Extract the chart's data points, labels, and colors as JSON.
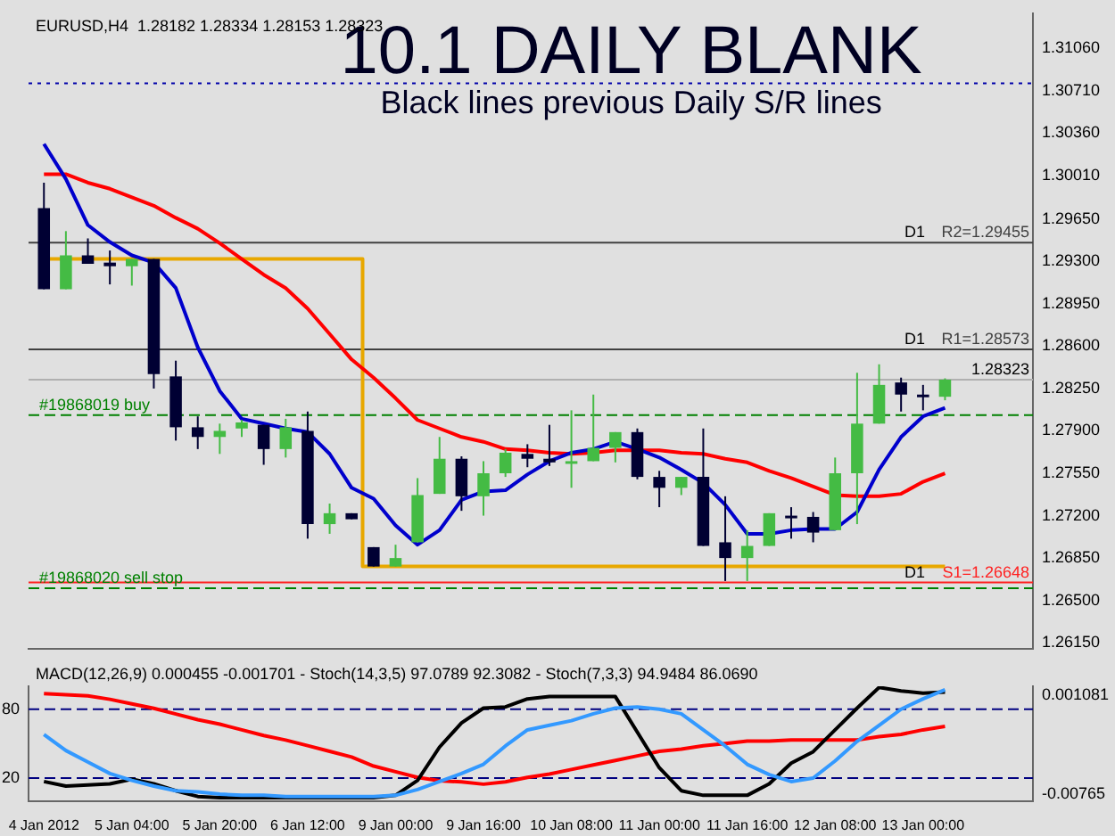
{
  "chart_data": [
    {
      "type": "candlestick",
      "title": "10.1 DAILY BLANK",
      "subtitle": "Black lines previous Daily S/R lines",
      "categories": [
        null,
        null,
        null,
        null,
        null,
        null,
        null,
        null,
        null,
        null,
        null,
        null,
        null,
        null,
        null,
        null,
        null,
        null,
        null,
        null,
        null,
        null,
        null,
        null,
        null,
        null,
        null,
        null,
        null,
        null,
        null,
        null,
        null,
        null,
        null,
        null,
        null,
        null,
        null,
        null,
        null,
        null
      ],
      "ohlc": [
        [
          1.2974,
          1.2995,
          1.2907,
          1.2907
        ],
        [
          1.2907,
          1.2955,
          1.2907,
          1.2935
        ],
        [
          1.2935,
          1.2949,
          1.2928,
          1.2928
        ],
        [
          1.2929,
          1.2939,
          1.2911,
          1.2926
        ],
        [
          1.2926,
          1.2932,
          1.291,
          1.2932
        ],
        [
          1.2932,
          1.2932,
          1.2825,
          1.2837
        ],
        [
          1.2835,
          1.2848,
          1.2782,
          1.2793
        ],
        [
          1.2793,
          1.2802,
          1.2775,
          1.2785
        ],
        [
          1.2785,
          1.2796,
          1.2771,
          1.279
        ],
        [
          1.2792,
          1.2799,
          1.2785,
          1.2797
        ],
        [
          1.2795,
          1.2795,
          1.2762,
          1.2775
        ],
        [
          1.2775,
          1.28,
          1.2768,
          1.2793
        ],
        [
          1.279,
          1.2806,
          1.2701,
          1.2713
        ],
        [
          1.2713,
          1.273,
          1.2705,
          1.2722
        ],
        [
          1.2722,
          1.2722,
          1.2717,
          1.2717
        ],
        [
          1.2694,
          1.2694,
          1.2678,
          1.2678
        ],
        [
          1.2678,
          1.2696,
          1.2678,
          1.2685
        ],
        [
          1.2698,
          1.2751,
          1.2698,
          1.2737
        ],
        [
          1.2738,
          1.2785,
          1.2738,
          1.2767
        ],
        [
          1.2767,
          1.2769,
          1.2724,
          1.2736
        ],
        [
          1.2736,
          1.2765,
          1.272,
          1.2755
        ],
        [
          1.2755,
          1.2775,
          1.2752,
          1.2772
        ],
        [
          1.2771,
          1.2779,
          1.276,
          1.2767
        ],
        [
          1.2767,
          1.2795,
          1.2761,
          1.2764
        ],
        [
          1.2764,
          1.2807,
          1.2743,
          1.2765
        ],
        [
          1.2765,
          1.282,
          1.2765,
          1.2776
        ],
        [
          1.2776,
          1.2789,
          1.2764,
          1.2789
        ],
        [
          1.2789,
          1.2792,
          1.275,
          1.2752
        ],
        [
          1.2752,
          1.2757,
          1.2727,
          1.2743
        ],
        [
          1.2743,
          1.2752,
          1.2737,
          1.2752
        ],
        [
          1.2752,
          1.2792,
          1.2695,
          1.2695
        ],
        [
          1.2698,
          1.2736,
          1.2666,
          1.2685
        ],
        [
          1.2685,
          1.2708,
          1.2666,
          1.2695
        ],
        [
          1.2695,
          1.2722,
          1.2695,
          1.2722
        ],
        [
          1.272,
          1.2727,
          1.2701,
          1.2719
        ],
        [
          1.2719,
          1.2723,
          1.2698,
          1.2706
        ],
        [
          1.2708,
          1.2768,
          1.2708,
          1.2755
        ],
        [
          1.2755,
          1.2838,
          1.2713,
          1.2796
        ],
        [
          1.2796,
          1.2845,
          1.2796,
          1.2828
        ],
        [
          1.283,
          1.2834,
          1.2806,
          1.282
        ],
        [
          1.282,
          1.2828,
          1.2807,
          1.2818
        ],
        [
          1.28182,
          1.28334,
          1.28153,
          1.28323
        ]
      ],
      "colors": [
        "#000033",
        "#44bb44",
        "#000033",
        "#000033",
        "#44bb44",
        "#000033",
        "#000033",
        "#000033",
        "#44bb44",
        "#44bb44",
        "#000033",
        "#44bb44",
        "#000033",
        "#44bb44",
        "#000033",
        "#000033",
        "#44bb44",
        "#44bb44",
        "#44bb44",
        "#000033",
        "#44bb44",
        "#44bb44",
        "#000033",
        "#000033",
        "#44bb44",
        "#44bb44",
        "#44bb44",
        "#000033",
        "#000033",
        "#44bb44",
        "#000033",
        "#000033",
        "#44bb44",
        "#44bb44",
        "#000033",
        "#000033",
        "#44bb44",
        "#44bb44",
        "#44bb44",
        "#000033",
        "#000033",
        "#44bb44"
      ],
      "series": [
        {
          "type": "line",
          "color": "#0000cc",
          "values": [
            1.3027,
            1.2998,
            1.296,
            1.2946,
            1.2935,
            1.2929,
            1.2908,
            1.2859,
            1.2823,
            1.28,
            1.2796,
            1.2792,
            1.2789,
            1.2771,
            1.2743,
            1.2734,
            1.2712,
            1.2696,
            1.2708,
            1.2733,
            1.274,
            1.2741,
            1.2754,
            1.2765,
            1.2772,
            1.2775,
            1.2781,
            1.2775,
            1.2768,
            1.2758,
            1.2747,
            1.2729,
            1.2705,
            1.2705,
            1.2708,
            1.2709,
            1.2709,
            1.2723,
            1.2758,
            1.2785,
            1.2802,
            1.2809
          ]
        },
        {
          "type": "line",
          "color": "#ff0000",
          "values": [
            1.3002,
            1.3002,
            1.2995,
            1.299,
            1.2983,
            1.2976,
            1.2966,
            1.2957,
            1.2945,
            1.2932,
            1.2919,
            1.2908,
            1.2891,
            1.287,
            1.2849,
            1.2834,
            1.2817,
            1.2799,
            1.2792,
            1.2785,
            1.2781,
            1.2775,
            1.2774,
            1.2772,
            1.2771,
            1.2772,
            1.2774,
            1.2774,
            1.2774,
            1.2772,
            1.2771,
            1.2767,
            1.2764,
            1.2757,
            1.2751,
            1.2744,
            1.2737,
            1.2736,
            1.2736,
            1.2738,
            1.2748,
            1.2755
          ]
        },
        {
          "type": "step",
          "color": "#e8a800",
          "values": [
            1.2932,
            1.2932,
            1.2932,
            1.2932,
            1.2932,
            1.2932,
            1.2932,
            1.2932,
            1.2932,
            1.2932,
            1.2932,
            1.2932,
            1.2932,
            1.2932,
            1.2932,
            1.2678,
            1.2678,
            1.2678,
            1.2678,
            1.2678,
            1.2678,
            1.2678,
            1.2678,
            1.2678,
            1.2678,
            1.2678,
            1.2678,
            1.2678,
            1.2678,
            1.2678,
            1.2678,
            1.2678,
            1.2678,
            1.2678,
            1.2678,
            1.2678,
            1.2678,
            1.2678,
            1.2678,
            1.2678,
            1.2678,
            1.2678
          ]
        }
      ],
      "ylim": [
        1.261,
        1.3135
      ],
      "yticks": [
        {
          "value": 1.2615,
          "label": "1.26150"
        },
        {
          "value": 1.265,
          "label": "1.26500"
        },
        {
          "value": 1.2685,
          "label": "1.26850"
        },
        {
          "value": 1.272,
          "label": "1.27200"
        },
        {
          "value": 1.2755,
          "label": "1.27550"
        },
        {
          "value": 1.279,
          "label": "1.27900"
        },
        {
          "value": 1.2825,
          "label": "1.28250"
        },
        {
          "value": 1.286,
          "label": "1.28600"
        },
        {
          "value": 1.2895,
          "label": "1.28950"
        },
        {
          "value": 1.293,
          "label": "1.29300"
        },
        {
          "value": 1.2965,
          "label": "1.29650"
        },
        {
          "value": 1.3001,
          "label": "1.30010"
        },
        {
          "value": 1.3036,
          "label": "1.30360"
        },
        {
          "value": 1.3071,
          "label": "1.30710"
        },
        {
          "value": 1.3106,
          "label": "1.31060"
        }
      ],
      "ref_lines": [
        {
          "axis": "y",
          "value": 1.3077,
          "color": "#0000aa",
          "line_style": "dotted"
        },
        {
          "axis": "y",
          "value": 1.29455,
          "label": "R2=1.29455",
          "color": "#404040",
          "line_style": "solid"
        },
        {
          "axis": "y",
          "value": 1.28573,
          "label": "R1=1.28573",
          "color": "#404040",
          "line_style": "solid"
        },
        {
          "axis": "y",
          "value": 1.28323,
          "label": "1.28323",
          "color": "#b0b0b0",
          "line_style": "solid"
        },
        {
          "axis": "y",
          "value": 1.2803,
          "label": "#19868019 buy",
          "color": "#008000",
          "line_style": "dashed"
        },
        {
          "axis": "y",
          "value": 1.26648,
          "label": "S1=1.26648",
          "color": "#ff2020",
          "line_style": "solid"
        },
        {
          "axis": "y",
          "value": 1.266,
          "label": "#19868020 sell stop",
          "color": "#008000",
          "line_style": "dashed"
        }
      ],
      "annotations": [
        "EURUSD,H4  1.28182 1.28334 1.28153 1.28323",
        {
          "text": "D1",
          "y": 1.29455
        },
        {
          "text": "D1",
          "y": 1.28573
        },
        {
          "text": "D1",
          "y": 1.26648
        }
      ],
      "tick_labels": "y"
    },
    {
      "type": "line",
      "categories": [
        "4 Jan 2012",
        null,
        null,
        null,
        "5 Jan 04:00",
        null,
        null,
        null,
        "5 Jan 20:00",
        null,
        null,
        null,
        "6 Jan 12:00",
        null,
        null,
        null,
        "9 Jan 00:00",
        null,
        null,
        null,
        "9 Jan 16:00",
        null,
        null,
        null,
        "10 Jan 08:00",
        null,
        null,
        null,
        "11 Jan 00:00",
        null,
        null,
        null,
        "11 Jan 16:00",
        null,
        null,
        null,
        "12 Jan 08:00",
        null,
        null,
        null,
        "13 Jan 00:00",
        null
      ],
      "series": [
        {
          "color": "#3399ff",
          "values": [
            58,
            44,
            34,
            24,
            18,
            13,
            9,
            8,
            6,
            5,
            5,
            4,
            4,
            4,
            4,
            4,
            5,
            10,
            17,
            24,
            32,
            48,
            62,
            66,
            70,
            76,
            81,
            82,
            80,
            76,
            62,
            48,
            32,
            23,
            17,
            20,
            35,
            52,
            66,
            80,
            89,
            97
          ]
        },
        {
          "color": "#000000",
          "values": [
            17,
            13,
            14,
            15,
            19,
            15,
            9,
            4,
            3,
            3,
            3,
            3,
            3,
            3,
            3,
            3,
            5,
            18,
            47,
            68,
            81,
            82,
            89,
            91,
            91,
            91,
            91,
            60,
            29,
            9,
            5,
            5,
            5,
            15,
            33,
            43,
            62,
            81,
            99,
            96,
            94,
            95
          ]
        },
        {
          "color": "#ff0000",
          "axis": "y2",
          "values": [
            0.0012,
            0.0011,
            0.001,
            0.0007,
            0.0003,
            -0.0001,
            -0.0006,
            -0.0011,
            -0.0015,
            -0.002,
            -0.0025,
            -0.0029,
            -0.0034,
            -0.0039,
            -0.0044,
            -0.0052,
            -0.0057,
            -0.0062,
            -0.0065,
            -0.0066,
            -0.0068,
            -0.0066,
            -0.0062,
            -0.0059,
            -0.0055,
            -0.0051,
            -0.0047,
            -0.0043,
            -0.0039,
            -0.0037,
            -0.0034,
            -0.0032,
            -0.003,
            -0.003,
            -0.0029,
            -0.0029,
            -0.0029,
            -0.0029,
            -0.0026,
            -0.0024,
            -0.002,
            -0.0017
          ]
        }
      ],
      "ylim": [
        0,
        100
      ],
      "yticks": [
        20,
        80
      ],
      "y2lim": [
        -0.00829,
        0.00185
      ],
      "y2ticks": [
        -0.00765,
        0.001081
      ],
      "ref_lines": [
        {
          "axis": "y",
          "value": 80,
          "color": "#000080",
          "line_style": "dashed"
        },
        {
          "axis": "y",
          "value": 20,
          "color": "#000080",
          "line_style": "dashed"
        }
      ],
      "annotations": [
        "MACD(12,26,9) 0.000455 -0.001701 - Stoch(14,3,5) 97.0789 92.3082 - Stoch(7,3,3) 94.9484 86.0690"
      ]
    }
  ]
}
